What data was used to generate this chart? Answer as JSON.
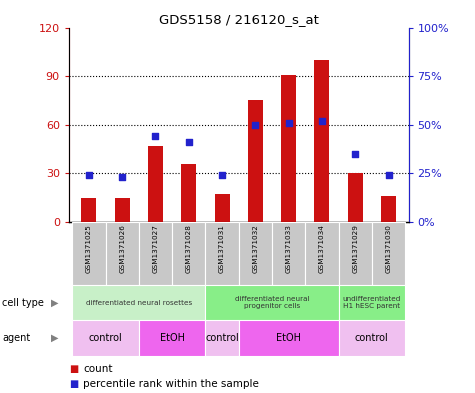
{
  "title": "GDS5158 / 216120_s_at",
  "samples": [
    "GSM1371025",
    "GSM1371026",
    "GSM1371027",
    "GSM1371028",
    "GSM1371031",
    "GSM1371032",
    "GSM1371033",
    "GSM1371034",
    "GSM1371029",
    "GSM1371030"
  ],
  "counts": [
    15,
    15,
    47,
    36,
    17,
    75,
    91,
    100,
    30,
    16
  ],
  "percentiles": [
    24,
    23,
    44,
    41,
    24,
    50,
    51,
    52,
    35,
    24
  ],
  "ylim_left": [
    0,
    120
  ],
  "ylim_right": [
    0,
    100
  ],
  "yticks_left": [
    0,
    30,
    60,
    90,
    120
  ],
  "yticks_right": [
    0,
    25,
    50,
    75,
    100
  ],
  "ytick_labels_left": [
    "0",
    "30",
    "60",
    "90",
    "120"
  ],
  "ytick_labels_right": [
    "0%",
    "25%",
    "50%",
    "75%",
    "100%"
  ],
  "bar_color": "#cc1111",
  "scatter_color": "#2222cc",
  "bg_color": "#ffffff",
  "sample_row_bg": "#c8c8c8",
  "ct_defs": [
    [
      0,
      3,
      "differentiated neural rosettes",
      "#c8f0c8"
    ],
    [
      4,
      7,
      "differentiated neural\nprogenitor cells",
      "#88ee88"
    ],
    [
      8,
      9,
      "undifferentiated\nH1 hESC parent",
      "#88ee88"
    ]
  ],
  "agent_defs": [
    [
      0,
      1,
      "control",
      "#f0c0f0"
    ],
    [
      2,
      3,
      "EtOH",
      "#ee66ee"
    ],
    [
      4,
      4,
      "control",
      "#f0c0f0"
    ],
    [
      5,
      7,
      "EtOH",
      "#ee66ee"
    ],
    [
      8,
      9,
      "control",
      "#f0c0f0"
    ]
  ],
  "legend_count_color": "#cc1111",
  "legend_pct_color": "#2222cc"
}
